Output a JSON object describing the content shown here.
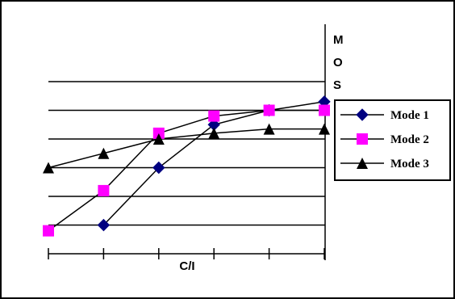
{
  "chart_data": {
    "type": "line",
    "title": "",
    "xlabel": "C/I",
    "ylabel": "",
    "x": [
      1,
      2,
      3,
      4,
      5,
      6
    ],
    "ylim": [
      0,
      8
    ],
    "y_ticks": [
      1,
      2,
      3,
      4,
      5,
      6
    ],
    "grid": "horizontal",
    "legend_position": "right",
    "series": [
      {
        "name": "Mode 1",
        "marker": "diamond",
        "color": "#000080",
        "values": [
          null,
          1.0,
          3.0,
          4.5,
          5.0,
          5.3
        ]
      },
      {
        "name": "Mode 2",
        "marker": "square",
        "color": "#FF00FF",
        "values": [
          0.8,
          2.2,
          4.2,
          4.8,
          5.0,
          5.0
        ]
      },
      {
        "name": "Mode 3",
        "marker": "triangle",
        "color": "#000000",
        "values": [
          3.0,
          3.5,
          4.0,
          4.2,
          4.35,
          4.35
        ]
      }
    ],
    "annotations": [
      "M",
      "O",
      "S"
    ]
  }
}
